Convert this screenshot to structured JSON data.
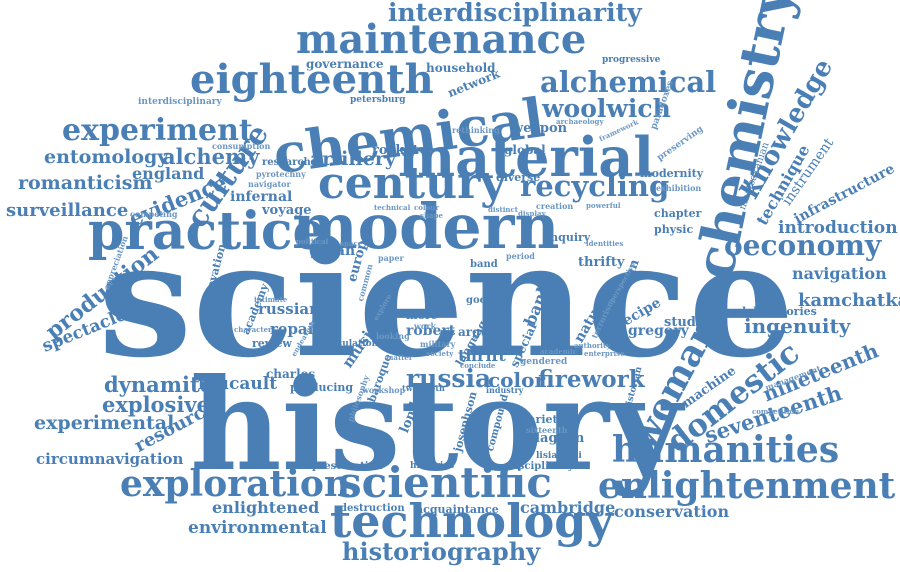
{
  "cloud": {
    "accent_color": "#4a7fb5",
    "words": {
      "science": "science",
      "history": "history",
      "modern": "modern",
      "practice": "practice",
      "chemical": "chemical",
      "material": "material",
      "century": "century",
      "chemistry": "chemistry",
      "technology": "technology",
      "scientific": "scientific",
      "exploration": "exploration",
      "humanities": "humanities",
      "enlightenment": "enlightenment",
      "eighteenth": "eighteenth",
      "maintenance": "maintenance",
      "interdisciplinarity": "interdisciplinarity",
      "woman": "woman",
      "domestic": "domestic",
      "historiography": "historiography",
      "experiment": "experiment",
      "alchemical": "alchemical",
      "woolwich": "woolwich",
      "recycling": "recycling",
      "knowledge": "knowledge",
      "culture": "culture",
      "oeconomy": "oeconomy",
      "russia": "russia",
      "firework": "firework",
      "color": "color",
      "entomology": "entomology",
      "alchemy": "alchemy",
      "romanticism": "romanticism",
      "surveillance": "surveillance",
      "evidence": "evidence",
      "england": "england",
      "artillery": "artillery",
      "production": "production",
      "spectacle": "spectacle",
      "dynamite": "dynamite",
      "explosive": "explosive",
      "experimental": "experimental",
      "resource": "resource",
      "circumnavigation": "circumnavigation",
      "foucault": "foucault",
      "seventeenth": "seventeenth",
      "nineteenth": "nineteenth",
      "kamchatka": "kamchatka",
      "ingenuity": "ingenuity",
      "navigation": "navigation",
      "introduction": "introduction",
      "technique": "technique",
      "infrastructure": "infrastructure",
      "instrument": "instrument",
      "mnatsakanian": "mnatsakanian",
      "cambridge": "cambridge",
      "conservation": "conservation",
      "enlightened": "enlightened",
      "environmental": "environmental",
      "governance": "governance",
      "household": "household",
      "progressive": "progressive",
      "network": "network",
      "petersburg": "petersburg",
      "interdisciplinary": "interdisciplinary",
      "rocket": "rocket",
      "weapon": "weapon",
      "rethinking": "rethinking",
      "paradoxes": "paradoxes",
      "framework": "framework",
      "preserving": "preserving",
      "archaeology": "archaeology",
      "consumption": "consumption",
      "research": "research",
      "pyrotechny": "pyrotechny",
      "navigator": "navigator",
      "infernal": "infernal",
      "voyage": "voyage",
      "competing": "competing",
      "global": "global",
      "diverse": "diverse",
      "modernity": "modernity",
      "exhibition": "exhibition",
      "chapter": "chapter",
      "physic": "physic",
      "creation": "creation",
      "inquiry": "inquiry",
      "thrifty": "thrifty",
      "japan": "japan",
      "europe": "europe",
      "innovation": "innovation",
      "appreciation": "appreciation",
      "russian": "russian",
      "repair": "repair",
      "review": "review",
      "academy": "academy",
      "intimate": "intimate",
      "charles": "charles",
      "calculation": "calculation",
      "producing": "producing",
      "music": "music",
      "baroque": "baroque",
      "thrift": "thrift",
      "robert": "robert",
      "argue": "argue",
      "bank": "bank",
      "special": "special",
      "natural": "natural",
      "artisan": "artisan",
      "recipe": "recipe",
      "gregory": "gregory",
      "studies": "studies",
      "laboratories": "laboratories",
      "machine": "machine",
      "historian": "historian",
      "management": "management",
      "competition": "competition",
      "variety": "variety",
      "sixteenth": "sixteenth",
      "blagden": "blagden",
      "lisianskii": "lisianskii",
      "disciplinary": "disciplinary",
      "histories": "histories",
      "preservation": "preservation",
      "acquaintance": "acquaintance",
      "destruction": "destruction",
      "london": "london",
      "josephson": "josephson",
      "compound": "compound",
      "industry": "industry",
      "twentieth": "twentieth",
      "philosophy": "philosophy",
      "workshop": "workshop",
      "language": "language",
      "more": "more",
      "work": "work",
      "good": "good",
      "band": "band",
      "paper": "paper",
      "space": "space",
      "more_small": "military",
      "society": "society",
      "gendered": "gendered",
      "conclude": "conclude",
      "looking": "looking",
      "matter": "matter",
      "authority": "authority",
      "enterprise": "enterprise",
      "academic": "academic",
      "perspective": "perspective",
      "terrorism": "terrorism",
      "endeavour": "endeavour",
      "character": "character",
      "period": "period",
      "identities": "identities",
      "powerful": "powerful",
      "technical": "technical",
      "colour": "colour",
      "shape": "shape",
      "distinct": "distinct",
      "display": "display",
      "political": "political",
      "common": "common",
      "explore": "explore"
    }
  }
}
